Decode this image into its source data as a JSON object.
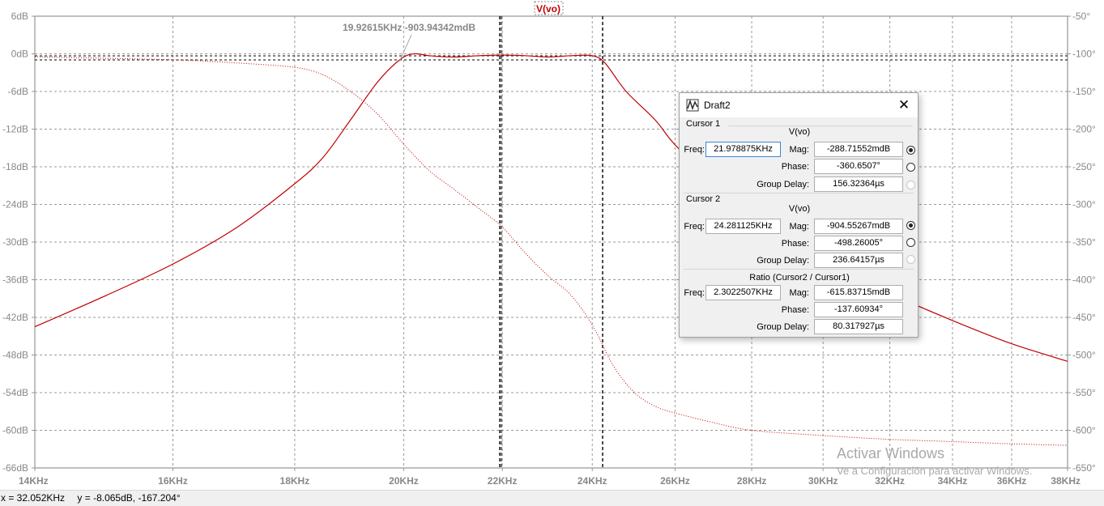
{
  "plot": {
    "title": "V(vo)",
    "left_axis_ticks": [
      "6dB",
      "0dB",
      "-6dB",
      "-12dB",
      "-18dB",
      "-24dB",
      "-30dB",
      "-36dB",
      "-42dB",
      "-48dB",
      "-54dB",
      "-60dB",
      "-66dB"
    ],
    "right_axis_ticks": [
      "-50°",
      "-100°",
      "-150°",
      "-200°",
      "-250°",
      "-300°",
      "-350°",
      "-400°",
      "-450°",
      "-500°",
      "-550°",
      "-600°",
      "-650°"
    ],
    "x_ticks": [
      "14KHz",
      "16KHz",
      "18KHz",
      "20KHz",
      "22KHz",
      "24KHz",
      "26KHz",
      "28KHz",
      "30KHz",
      "32KHz",
      "34KHz",
      "36KHz",
      "38KHz"
    ],
    "marker_annotation": "19.92615KHz -903.94342mdB",
    "trace_color": "#c00000"
  },
  "chart_data": {
    "type": "line",
    "title": "V(vo)",
    "xscale": "log",
    "xlim_hz": [
      14000,
      38000
    ],
    "ylim_db": [
      -66,
      6
    ],
    "y2lim_deg": [
      -650,
      -50
    ],
    "series": [
      {
        "name": "Magnitude (dB)",
        "axis": "left",
        "style": "solid",
        "x_khz": [
          14,
          15,
          16,
          17,
          18,
          18.5,
          19,
          19.5,
          19.93,
          20.2,
          20.5,
          21,
          21.5,
          22,
          22.5,
          23,
          23.5,
          24,
          24.3,
          24.8,
          25.5,
          26,
          27,
          28,
          30,
          32,
          34,
          36,
          38
        ],
        "y_db": [
          -43.5,
          -38.5,
          -33.5,
          -27.8,
          -20.7,
          -16.5,
          -10.5,
          -4.5,
          -0.9,
          0,
          -0.3,
          -0.5,
          -0.3,
          -0.2,
          -0.3,
          -0.5,
          -0.3,
          -0.3,
          -1.5,
          -6,
          -10.5,
          -14.5,
          -20.5,
          -25,
          -33,
          -38.2,
          -42.5,
          -46.2,
          -49
        ]
      },
      {
        "name": "Phase (deg)",
        "axis": "right",
        "style": "dotted",
        "x_khz": [
          14,
          16,
          17,
          18,
          18.5,
          19,
          19.5,
          20,
          20.5,
          21,
          21.5,
          22,
          22.5,
          23,
          23.5,
          24,
          24.5,
          25,
          25.5,
          26,
          27,
          28,
          30,
          32,
          34,
          36,
          38
        ],
        "y_deg": [
          -104,
          -108,
          -112,
          -118,
          -128,
          -150,
          -180,
          -220,
          -255,
          -280,
          -305,
          -330,
          -365,
          -395,
          -420,
          -460,
          -515,
          -550,
          -568,
          -577,
          -590,
          -600,
          -607,
          -612,
          -615,
          -618,
          -620
        ]
      }
    ],
    "cursors_khz": [
      21.978875,
      24.281125
    ],
    "marker": {
      "x_khz": 19.92615,
      "y_db": -0.90394342
    }
  },
  "status_bar": {
    "x_readout": "x = 32.052KHz",
    "y_readout": "y = -8.065dB, -167.204°"
  },
  "watermark": {
    "line1": "Activar Windows",
    "line2": "Ve a Configuración para activar Windows."
  },
  "dialog": {
    "title": "Draft2",
    "close_glyph": "✕",
    "cursor1": {
      "section": "Cursor 1",
      "trace": "V(vo)",
      "freq_label": "Freq:",
      "freq": "21.978875KHz",
      "mag_label": "Mag:",
      "mag": "-288.71552mdB",
      "phase_label": "Phase:",
      "phase": "-360.6507°",
      "gd_label": "Group Delay:",
      "group_delay": "156.32364µs"
    },
    "cursor2": {
      "section": "Cursor 2",
      "trace": "V(vo)",
      "freq_label": "Freq:",
      "freq": "24.281125KHz",
      "mag_label": "Mag:",
      "mag": "-904.55267mdB",
      "phase_label": "Phase:",
      "phase": "-498.26005°",
      "gd_label": "Group Delay:",
      "group_delay": "236.64157µs"
    },
    "ratio": {
      "section": "Ratio (Cursor2 / Cursor1)",
      "freq_label": "Freq:",
      "freq": "2.3022507KHz",
      "mag_label": "Mag:",
      "mag": "-615.83715mdB",
      "phase_label": "Phase:",
      "phase": "-137.60934°",
      "gd_label": "Group Delay:",
      "group_delay": "80.317927µs"
    }
  }
}
